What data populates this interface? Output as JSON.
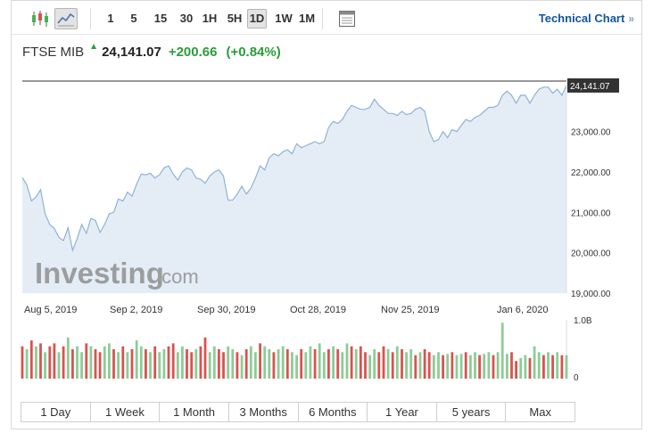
{
  "toolbar": {
    "chart_type_icon": "candlestick-icon",
    "line_icon": "line-chart-icon",
    "intervals": [
      "1",
      "5",
      "15",
      "30",
      "1H",
      "5H",
      "1D",
      "1W",
      "1M"
    ],
    "active_interval": "1D",
    "layout_icon": "window-layout-icon",
    "technical_link": "Technical Chart",
    "technical_arrow": "»"
  },
  "quote": {
    "name": "FTSE MIB",
    "direction_icon": "up-arrow-icon",
    "price": "24,141.07",
    "change": "+200.66",
    "change_pct": "(+0.84%)",
    "up_color": "#2a9d3a"
  },
  "watermark": {
    "brand": "Investing",
    "suffix": ".com"
  },
  "range_buttons": [
    "1 Day",
    "1 Week",
    "1 Month",
    "3 Months",
    "6 Months",
    "1 Year",
    "5 years",
    "Max"
  ],
  "chart_data": {
    "type": "area",
    "x_tick_labels": [
      "Aug 5, 2019",
      "Sep 2, 2019",
      "Sep 30, 2019",
      "Oct 28, 2019",
      "Nov 25, 2019",
      "Jan 6, 2020"
    ],
    "y_tick_labels": [
      "19,000.00",
      "20,000.00",
      "21,000.00",
      "22,000.00",
      "23,000.00"
    ],
    "y_ticks": [
      19000,
      20000,
      21000,
      22000,
      23000
    ],
    "ylim": [
      19000,
      24250
    ],
    "last_price_label": "24,141.07",
    "last_price": 24141.07,
    "volume_axis_labels": [
      "1.0B",
      "0"
    ],
    "volume_max": 1.0,
    "line_color": "#8fb2d6",
    "fill_color": "#e4edf6",
    "up_volume_color": "#8dcc97",
    "down_volume_color": "#d9534f",
    "prices": [
      21860,
      21680,
      21280,
      21380,
      21560,
      20960,
      20700,
      20600,
      20380,
      20300,
      20620,
      20060,
      20350,
      20700,
      20480,
      20850,
      20800,
      20500,
      20700,
      20960,
      21000,
      21330,
      21280,
      21500,
      21400,
      21700,
      21950,
      21930,
      21970,
      21850,
      21930,
      22100,
      22150,
      21950,
      21800,
      22000,
      22100,
      22050,
      21850,
      21820,
      21720,
      21900,
      22000,
      22050,
      21900,
      21300,
      21300,
      21450,
      21650,
      21450,
      21600,
      21850,
      22150,
      22050,
      22350,
      22450,
      22400,
      22500,
      22550,
      22450,
      22700,
      22600,
      22650,
      22700,
      22750,
      22700,
      22750,
      23100,
      23250,
      23200,
      23300,
      23500,
      23650,
      23600,
      23550,
      23550,
      23600,
      23800,
      23650,
      23550,
      23450,
      23450,
      23400,
      23500,
      23420,
      23450,
      23550,
      23600,
      23500,
      23000,
      22750,
      22800,
      23000,
      22850,
      23050,
      23000,
      23150,
      23300,
      23250,
      23350,
      23400,
      23500,
      23600,
      23600,
      23650,
      23900,
      24000,
      23900,
      23700,
      23900,
      23900,
      23700,
      23900,
      24050,
      24100,
      24100,
      23950,
      24050,
      23900,
      24141.07
    ],
    "volumes": [
      0.55,
      0.5,
      0.65,
      0.55,
      0.6,
      0.45,
      0.55,
      0.6,
      0.45,
      0.55,
      0.7,
      0.5,
      0.55,
      0.45,
      0.6,
      0.55,
      0.5,
      0.45,
      0.55,
      0.6,
      0.5,
      0.45,
      0.55,
      0.45,
      0.5,
      0.65,
      0.55,
      0.5,
      0.45,
      0.55,
      0.45,
      0.5,
      0.55,
      0.6,
      0.45,
      0.55,
      0.5,
      0.45,
      0.5,
      0.55,
      0.7,
      0.45,
      0.55,
      0.5,
      0.45,
      0.55,
      0.5,
      0.45,
      0.4,
      0.5,
      0.55,
      0.45,
      0.6,
      0.55,
      0.5,
      0.45,
      0.5,
      0.55,
      0.5,
      0.45,
      0.4,
      0.5,
      0.45,
      0.55,
      0.5,
      0.6,
      0.45,
      0.5,
      0.55,
      0.5,
      0.45,
      0.6,
      0.55,
      0.5,
      0.55,
      0.45,
      0.4,
      0.5,
      0.45,
      0.55,
      0.5,
      0.45,
      0.55,
      0.5,
      0.45,
      0.5,
      0.4,
      0.45,
      0.5,
      0.45,
      0.4,
      0.45,
      0.4,
      0.42,
      0.45,
      0.4,
      0.42,
      0.45,
      0.4,
      0.45,
      0.4,
      0.42,
      0.45,
      0.4,
      0.45,
      0.95,
      0.42,
      0.45,
      0.3,
      0.35,
      0.4,
      0.35,
      0.55,
      0.45,
      0.4,
      0.45,
      0.4,
      0.45,
      0.4,
      0.4
    ],
    "volume_directions": [
      "d",
      "u",
      "d",
      "u",
      "d",
      "u",
      "d",
      "d",
      "u",
      "d",
      "u",
      "d",
      "u",
      "u",
      "d",
      "u",
      "d",
      "d",
      "u",
      "u",
      "d",
      "u",
      "d",
      "u",
      "d",
      "u",
      "u",
      "d",
      "u",
      "d",
      "u",
      "u",
      "d",
      "d",
      "u",
      "u",
      "d",
      "d",
      "u",
      "d",
      "d",
      "u",
      "u",
      "d",
      "d",
      "u",
      "u",
      "d",
      "u",
      "d",
      "u",
      "u",
      "d",
      "u",
      "u",
      "d",
      "u",
      "u",
      "d",
      "u",
      "u",
      "d",
      "u",
      "u",
      "d",
      "u",
      "u",
      "d",
      "u",
      "d",
      "u",
      "u",
      "d",
      "u",
      "d",
      "d",
      "u",
      "u",
      "d",
      "d",
      "u",
      "d",
      "u",
      "d",
      "u",
      "u",
      "d",
      "u",
      "d",
      "d",
      "u",
      "u",
      "d",
      "u",
      "d",
      "u",
      "u",
      "d",
      "u",
      "u",
      "d",
      "u",
      "u",
      "d",
      "u",
      "u",
      "u",
      "d",
      "d",
      "u",
      "u",
      "d",
      "u",
      "u",
      "d",
      "u",
      "d",
      "u",
      "d",
      "u"
    ]
  }
}
